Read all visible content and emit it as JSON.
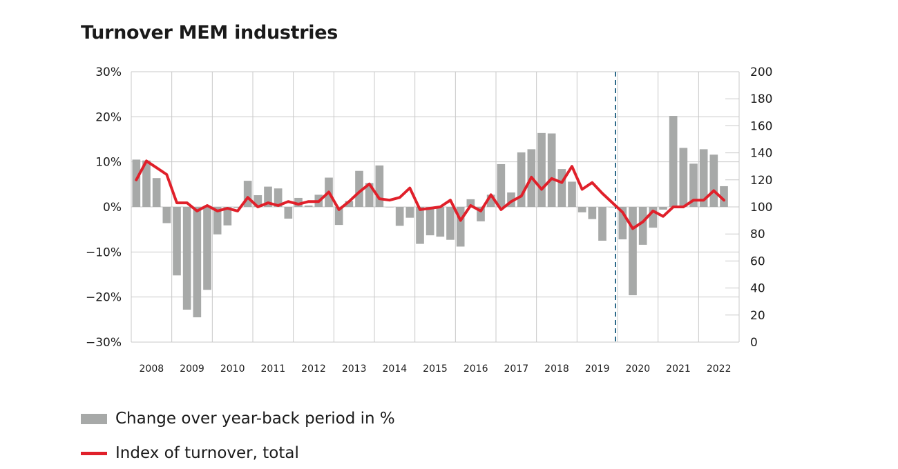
{
  "chart_data": {
    "type": "bar-line",
    "title": "Turnover MEM industries",
    "left_axis": {
      "range": [
        -30,
        30
      ],
      "ticks": [
        "30%",
        "20%",
        "10%",
        "0%",
        "−10%",
        "−20%",
        "−30%"
      ]
    },
    "right_axis": {
      "range": [
        0,
        200
      ],
      "ticks": [
        "200",
        "180",
        "160",
        "140",
        "120",
        "100",
        "80",
        "60",
        "40",
        "20",
        "0"
      ]
    },
    "years": [
      "2008",
      "2009",
      "2010",
      "2011",
      "2012",
      "2013",
      "2014",
      "2015",
      "2016",
      "2017",
      "2018",
      "2019",
      "2020",
      "2021",
      "2022"
    ],
    "quarters_start": "2008-Q1",
    "forecast_divider_after": "2019-Q4",
    "grid": true,
    "series": [
      {
        "name": "Change over year-back period in %",
        "kind": "bar",
        "axis": "left",
        "color": "#a7a9a8",
        "values": [
          10.5,
          10.3,
          6.4,
          -3.6,
          -15.2,
          -22.8,
          -24.5,
          -18.4,
          -6.1,
          -4.1,
          -0.2,
          5.8,
          2.6,
          4.5,
          4.1,
          -2.6,
          2.0,
          0.3,
          2.7,
          6.5,
          -4.0,
          1.3,
          8.0,
          5.3,
          9.2,
          -0.1,
          -4.2,
          -2.4,
          -8.2,
          -6.3,
          -6.6,
          -7.3,
          -8.8,
          1.7,
          -3.2,
          2.7,
          9.5,
          3.2,
          12.1,
          12.8,
          16.4,
          16.3,
          8.4,
          5.6,
          -1.2,
          -2.7,
          -7.5,
          -0.1,
          -7.2,
          -19.6,
          -8.4,
          -4.6,
          -0.6,
          20.2,
          13.1,
          9.6,
          12.8,
          11.6,
          4.6
        ]
      },
      {
        "name": "Index of turnover, total",
        "kind": "line",
        "axis": "right",
        "color": "#e0202a",
        "values": [
          120,
          134,
          129,
          124,
          103,
          103,
          97,
          101,
          97,
          99,
          97,
          107,
          100,
          103,
          101,
          104,
          102,
          104,
          104,
          111,
          98,
          104,
          111,
          117,
          106,
          105,
          107,
          114,
          98,
          99,
          100,
          105,
          90,
          101,
          97,
          109,
          98,
          104,
          108,
          122,
          113,
          121,
          118,
          130,
          113,
          118,
          110,
          103,
          96,
          84,
          89,
          97,
          93,
          100,
          100,
          105,
          105,
          112,
          105
        ]
      }
    ],
    "legend": {
      "position": "bottom",
      "items": [
        "Change over year-back period in %",
        "Index of turnover, total"
      ]
    }
  }
}
